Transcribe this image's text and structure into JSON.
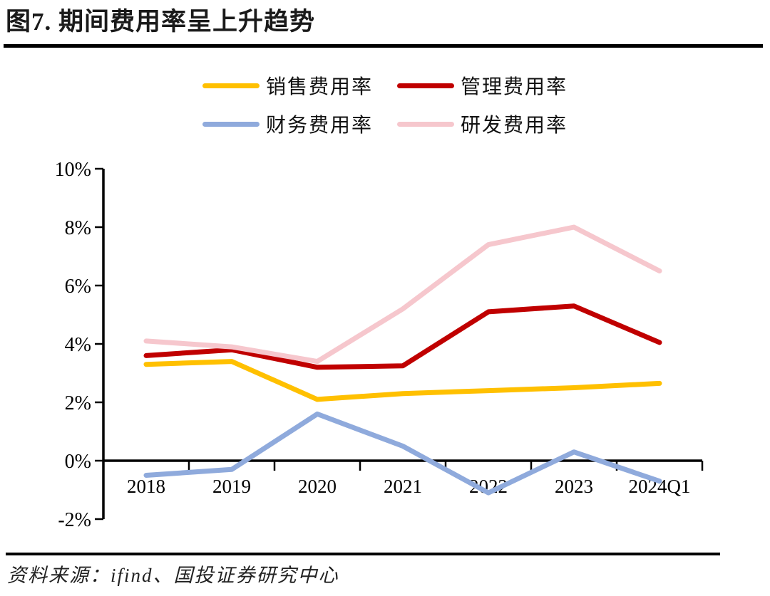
{
  "header": {
    "title": "图7. 期间费用率呈上升趋势"
  },
  "footer": {
    "source": "资料来源：ifind、国投证券研究中心"
  },
  "colors": {
    "axis": "#000000",
    "sales": "#FFC000",
    "admin": "#C00000",
    "finance": "#8FAADC",
    "rd": "#F6C7CD"
  },
  "chart_data": {
    "type": "line",
    "title": "期间费用率呈上升趋势",
    "categories": [
      "2018",
      "2019",
      "2020",
      "2021",
      "2022",
      "2023",
      "2024Q1"
    ],
    "series": [
      {
        "name": "销售费用率",
        "color": "#FFC000",
        "values": [
          3.3,
          3.4,
          2.1,
          2.3,
          2.4,
          2.5,
          2.65
        ]
      },
      {
        "name": "管理费用率",
        "color": "#C00000",
        "values": [
          3.6,
          3.8,
          3.2,
          3.25,
          5.1,
          5.3,
          4.05
        ]
      },
      {
        "name": "财务费用率",
        "color": "#8FAADC",
        "values": [
          -0.5,
          -0.3,
          1.6,
          0.5,
          -1.1,
          0.3,
          -0.7
        ]
      },
      {
        "name": "研发费用率",
        "color": "#F6C7CD",
        "values": [
          4.1,
          3.9,
          3.4,
          5.2,
          7.4,
          8.0,
          6.5
        ]
      }
    ],
    "xlabel": "",
    "ylabel": "",
    "ylim": [
      -2,
      10
    ],
    "ytick_step": 2,
    "ytick_suffix": "%",
    "grid": false,
    "legend_position": "top",
    "legend_rows": [
      [
        "销售费用率",
        "管理费用率"
      ],
      [
        "财务费用率",
        "研发费用率"
      ]
    ]
  }
}
